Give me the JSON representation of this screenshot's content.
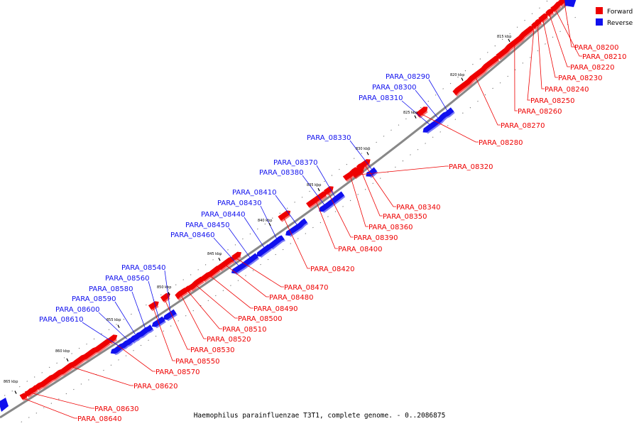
{
  "title": "Haemophilus parainfluenzae T3T1, complete genome. - 0..2086875",
  "colors": {
    "forward": "#ee0000",
    "reverse": "#1010ee",
    "backbone": "#888888"
  },
  "legend": [
    {
      "label": "Forward",
      "color": "#ee0000"
    },
    {
      "label": "Reverse",
      "color": "#1010ee"
    }
  ],
  "axis_ticks": [
    "815 kbp",
    "820 kbp",
    "825 kbp",
    "830 kbp",
    "835 kbp",
    "840 kbp",
    "845 kbp",
    "850 kbp",
    "855 kbp",
    "860 kbp",
    "865 kbp"
  ],
  "forward_genes": [
    "PARA_08200",
    "PARA_08210",
    "PARA_08220",
    "PARA_08230",
    "PARA_08240",
    "PARA_08250",
    "PARA_08260",
    "PARA_08270",
    "PARA_08280",
    "PARA_08320",
    "PARA_08340",
    "PARA_08350",
    "PARA_08360",
    "PARA_08390",
    "PARA_08400",
    "PARA_08420",
    "PARA_08470",
    "PARA_08480",
    "PARA_08490",
    "PARA_08500",
    "PARA_08510",
    "PARA_08520",
    "PARA_08530",
    "PARA_08550",
    "PARA_08570",
    "PARA_08620",
    "PARA_08630",
    "PARA_08640"
  ],
  "reverse_genes": [
    "PARA_08290",
    "PARA_08300",
    "PARA_08310",
    "PARA_08330",
    "PARA_08370",
    "PARA_08380",
    "PARA_08410",
    "PARA_08430",
    "PARA_08440",
    "PARA_08450",
    "PARA_08460",
    "PARA_08540",
    "PARA_08560",
    "PARA_08580",
    "PARA_08590",
    "PARA_08600",
    "PARA_08610"
  ]
}
